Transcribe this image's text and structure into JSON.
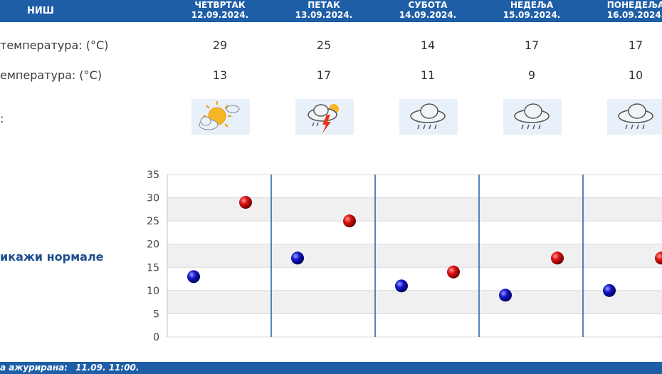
{
  "city": "НИШ",
  "days": [
    {
      "name": "ЧЕТВРТАК",
      "date": "12.09.2024.",
      "max": "29",
      "min": "13",
      "icon": "sun-cloud-icon"
    },
    {
      "name": "ПЕТАК",
      "date": "13.09.2024.",
      "max": "25",
      "min": "17",
      "icon": "thunderstorm-icon"
    },
    {
      "name": "СУБОТА",
      "date": "14.09.2024.",
      "max": "14",
      "min": "11",
      "icon": "rain-icon"
    },
    {
      "name": "НЕДЕЉА",
      "date": "15.09.2024.",
      "max": "17",
      "min": "9",
      "icon": "rain-icon"
    },
    {
      "name": "ПОНЕДЕЉА",
      "date": "16.09.2024.",
      "max": "17",
      "min": "10",
      "icon": "rain-icon"
    }
  ],
  "labels": {
    "max_temp": "температура: (°C)",
    "min_temp": "емпература: (°C)",
    "weather": ":"
  },
  "normals_label": "икажи нормале",
  "footer": {
    "label": "а ажурирана:",
    "value": "11.09. 11:00."
  },
  "colors": {
    "header": "#1e5ea6",
    "max_marker": "#cc0000",
    "min_marker": "#0000bb",
    "separator": "#1e5ea6"
  },
  "chart_data": {
    "type": "scatter",
    "ylim": [
      0,
      35
    ],
    "yticks": [
      "0",
      "5",
      "10",
      "15",
      "20",
      "25",
      "30",
      "35"
    ],
    "series": [
      {
        "values": [
          13,
          17,
          11,
          9,
          10
        ]
      },
      {
        "values": [
          29,
          25,
          14,
          17,
          17
        ]
      }
    ]
  }
}
